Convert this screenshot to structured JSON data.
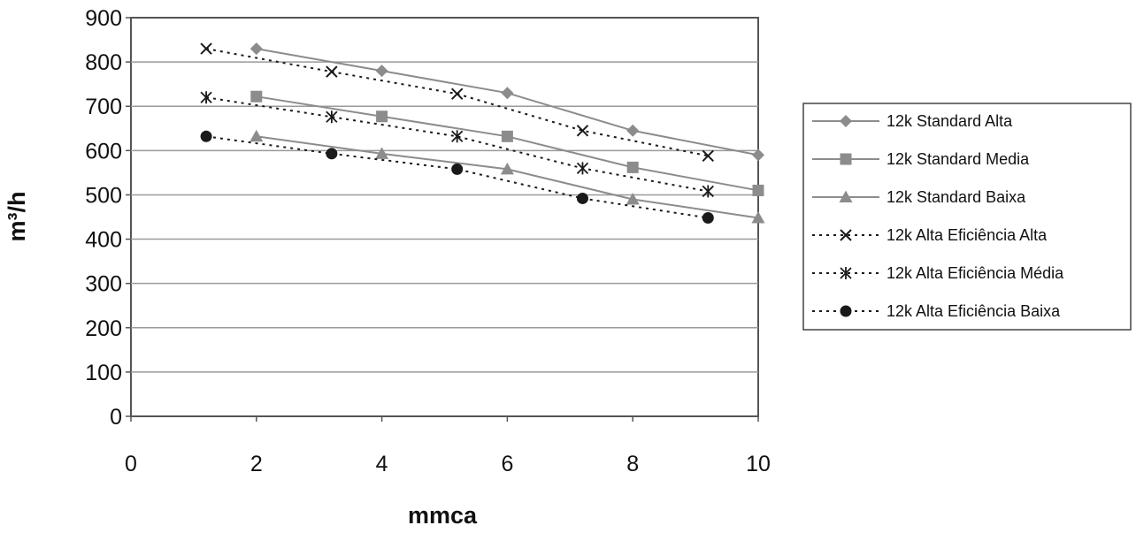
{
  "chart_data": {
    "type": "line",
    "title": "",
    "xlabel": "mmca",
    "ylabel": "m³/h",
    "xlim": [
      0,
      10
    ],
    "ylim": [
      0,
      900
    ],
    "x_ticks": [
      "0",
      "2",
      "4",
      "6",
      "8",
      "10"
    ],
    "y_ticks": [
      "0",
      "100",
      "200",
      "300",
      "400",
      "500",
      "600",
      "700",
      "800",
      "900"
    ],
    "grid": "horizontal",
    "legend_position": "right",
    "series": [
      {
        "name": "12k Standard Alta",
        "style": "solid",
        "marker": "diamond",
        "color": "#8c8c8c",
        "x": [
          2,
          4,
          6,
          8,
          10
        ],
        "y": [
          830,
          780,
          730,
          645,
          590
        ]
      },
      {
        "name": "12k Standard Media",
        "style": "solid",
        "marker": "square",
        "color": "#8c8c8c",
        "x": [
          2,
          4,
          6,
          8,
          10
        ],
        "y": [
          722,
          677,
          632,
          562,
          510
        ]
      },
      {
        "name": "12k Standard Baixa",
        "style": "solid",
        "marker": "triangle",
        "color": "#8c8c8c",
        "x": [
          2,
          4,
          6,
          8,
          10
        ],
        "y": [
          632,
          593,
          558,
          490,
          448
        ]
      },
      {
        "name": "12k Alta Eficiência Alta",
        "style": "dotted",
        "marker": "x",
        "color": "#1a1a1a",
        "x": [
          1.2,
          3.2,
          5.2,
          7.2,
          9.2
        ],
        "y": [
          830,
          778,
          728,
          645,
          588
        ]
      },
      {
        "name": "12k Alta Eficiência Média",
        "style": "dotted",
        "marker": "asterisk",
        "color": "#1a1a1a",
        "x": [
          1.2,
          3.2,
          5.2,
          7.2,
          9.2
        ],
        "y": [
          720,
          676,
          632,
          560,
          508
        ]
      },
      {
        "name": "12k Alta Eficiência Baixa",
        "style": "dotted",
        "marker": "circle",
        "color": "#1a1a1a",
        "x": [
          1.2,
          3.2,
          5.2,
          7.2,
          9.2
        ],
        "y": [
          632,
          593,
          558,
          492,
          448
        ]
      }
    ]
  }
}
